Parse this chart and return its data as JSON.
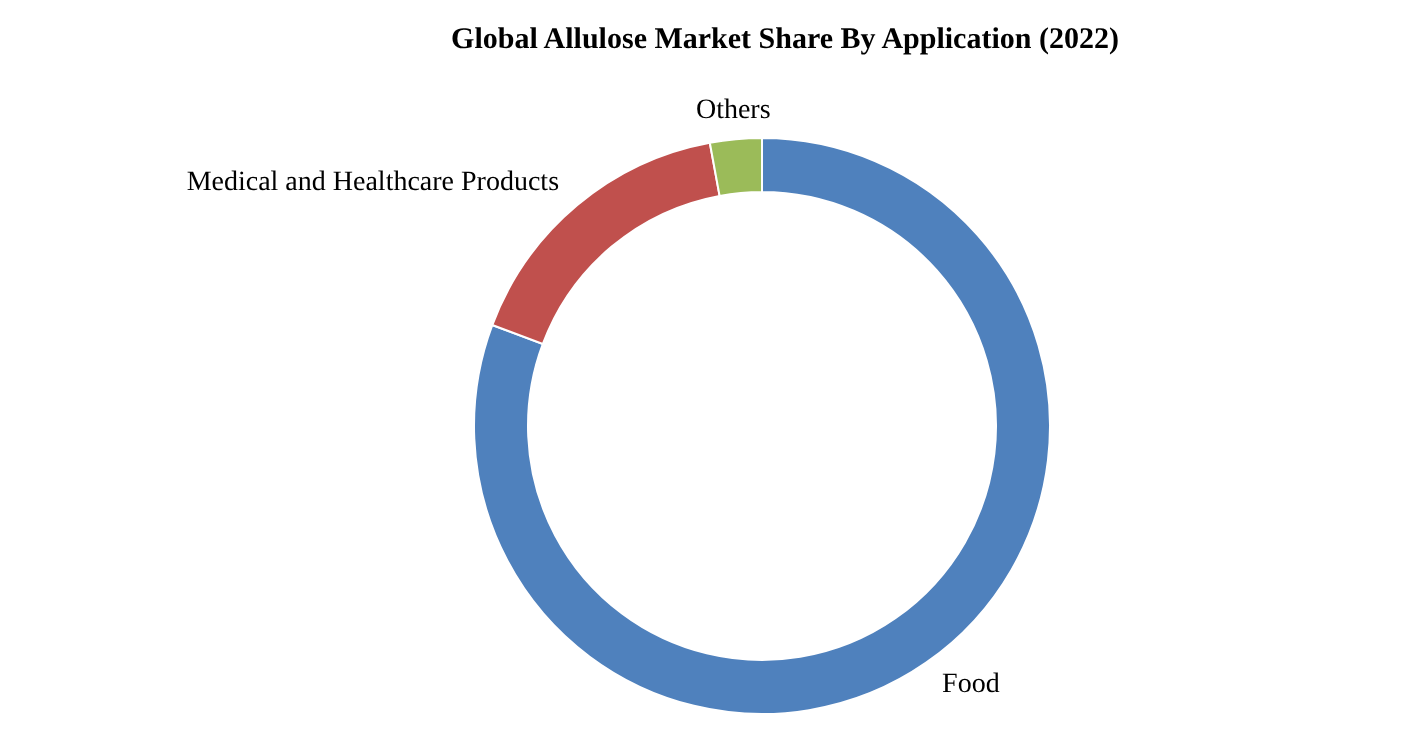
{
  "chart_data": {
    "type": "donut",
    "title": "Global Allulose Market Share By Application (2022)",
    "categories": [
      "Food",
      "Medical and Healthcare Products",
      "Others"
    ],
    "values": [
      80.7,
      16.4,
      2.9
    ],
    "colors": [
      "#4f81bd",
      "#c0504d",
      "#9bbb59"
    ]
  }
}
